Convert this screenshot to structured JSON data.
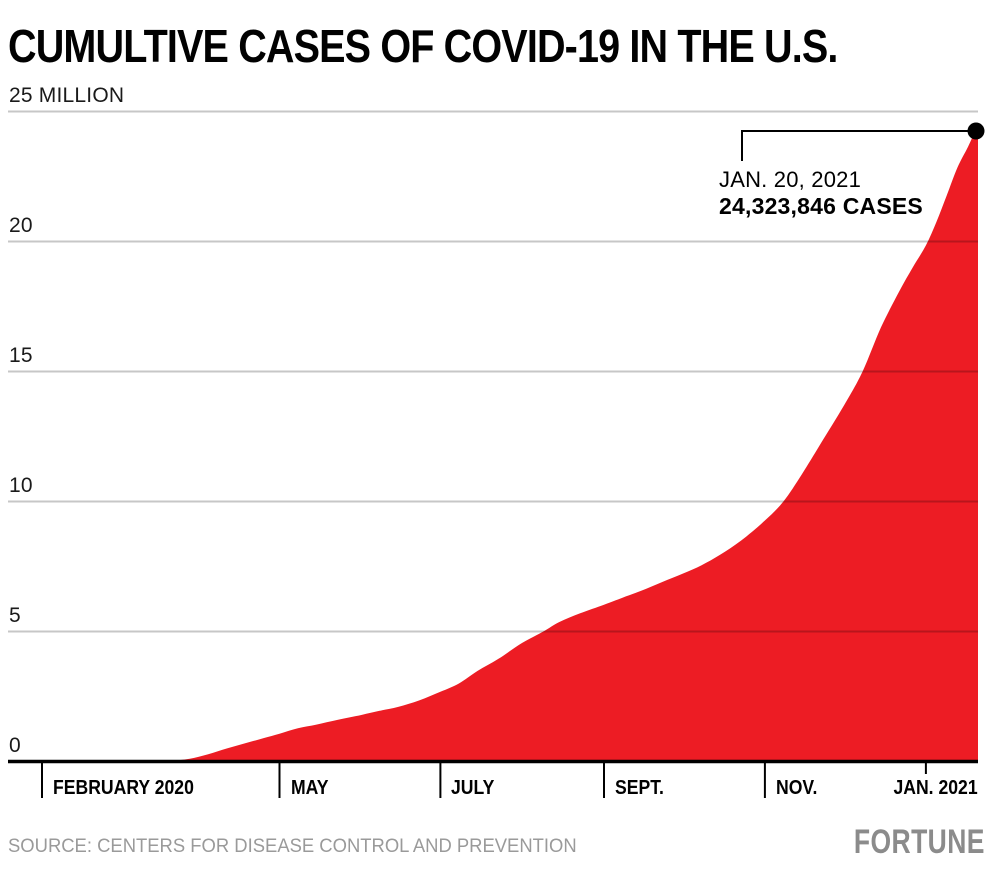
{
  "title": "CUMULTIVE CASES OF COVID-19 IN THE U.S.",
  "annotation": {
    "date_label": "JAN. 20, 2021",
    "value_label": "24,323,846 CASES"
  },
  "source": "SOURCE: CENTERS FOR DISEASE CONTROL AND PREVENTION",
  "brand": "FORTUNE",
  "colors": {
    "area": "#ED1C24",
    "gridline_overlay": "rgba(0,0,0,0.22)",
    "axis": "#000000",
    "callout": "#000000",
    "endpoint_dot": "#000000",
    "muted_text": "#9a9a9a",
    "background": "#ffffff"
  },
  "chart_data": {
    "type": "area",
    "title": "CUMULTIVE CASES OF COVID-19 IN THE U.S.",
    "unit": "million cases",
    "x_range": [
      "2020-01-21",
      "2021-01-20"
    ],
    "ylim": [
      0,
      25
    ],
    "grid": true,
    "y_ticks": [
      {
        "value": 25,
        "label": "25 MILLION"
      },
      {
        "value": 20,
        "label": "20"
      },
      {
        "value": 15,
        "label": "15"
      },
      {
        "value": 10,
        "label": "10"
      },
      {
        "value": 5,
        "label": "5"
      },
      {
        "value": 0,
        "label": "0"
      }
    ],
    "x_ticks": [
      {
        "date": "2020-02-01",
        "label": "FEBRUARY 2020"
      },
      {
        "date": "2020-05-01",
        "label": "MAY"
      },
      {
        "date": "2020-07-01",
        "label": "JULY"
      },
      {
        "date": "2020-09-01",
        "label": "SEPT."
      },
      {
        "date": "2020-11-01",
        "label": "NOV."
      },
      {
        "date": "2021-01-01",
        "label": "JAN. 2021"
      }
    ],
    "series": [
      {
        "name": "Cumulative COVID-19 cases (millions)",
        "points": [
          [
            "2020-01-21",
            0
          ],
          [
            "2020-02-15",
            0.0001
          ],
          [
            "2020-03-01",
            0.001
          ],
          [
            "2020-03-10",
            0.004
          ],
          [
            "2020-03-17",
            0.01
          ],
          [
            "2020-03-22",
            0.033
          ],
          [
            "2020-03-28",
            0.105
          ],
          [
            "2020-04-04",
            0.28
          ],
          [
            "2020-04-11",
            0.5
          ],
          [
            "2020-04-18",
            0.7
          ],
          [
            "2020-04-25",
            0.9
          ],
          [
            "2020-05-01",
            1.07
          ],
          [
            "2020-05-08",
            1.28
          ],
          [
            "2020-05-15",
            1.42
          ],
          [
            "2020-05-23",
            1.6
          ],
          [
            "2020-06-01",
            1.79
          ],
          [
            "2020-06-08",
            1.95
          ],
          [
            "2020-06-15",
            2.1
          ],
          [
            "2020-06-23",
            2.35
          ],
          [
            "2020-07-01",
            2.68
          ],
          [
            "2020-07-08",
            3.0
          ],
          [
            "2020-07-15",
            3.48
          ],
          [
            "2020-07-23",
            3.95
          ],
          [
            "2020-08-01",
            4.56
          ],
          [
            "2020-08-09",
            5.0
          ],
          [
            "2020-08-15",
            5.36
          ],
          [
            "2020-08-23",
            5.7
          ],
          [
            "2020-09-01",
            6.03
          ],
          [
            "2020-09-08",
            6.3
          ],
          [
            "2020-09-15",
            6.56
          ],
          [
            "2020-09-23",
            6.9
          ],
          [
            "2020-10-01",
            7.23
          ],
          [
            "2020-10-08",
            7.55
          ],
          [
            "2020-10-15",
            7.95
          ],
          [
            "2020-10-23",
            8.5
          ],
          [
            "2020-11-01",
            9.27
          ],
          [
            "2020-11-08",
            10.0
          ],
          [
            "2020-11-15",
            11.05
          ],
          [
            "2020-11-22",
            12.2
          ],
          [
            "2020-12-01",
            13.7
          ],
          [
            "2020-12-08",
            15.0
          ],
          [
            "2020-12-15",
            16.7
          ],
          [
            "2020-12-22",
            18.1
          ],
          [
            "2020-12-27",
            19.0
          ],
          [
            "2021-01-01",
            19.85
          ],
          [
            "2021-01-05",
            20.75
          ],
          [
            "2021-01-09",
            21.8
          ],
          [
            "2021-01-13",
            22.85
          ],
          [
            "2021-01-17",
            23.65
          ],
          [
            "2021-01-20",
            24.323846
          ]
        ]
      }
    ],
    "endpoint": {
      "date": "2021-01-20",
      "cases": 24323846
    }
  }
}
